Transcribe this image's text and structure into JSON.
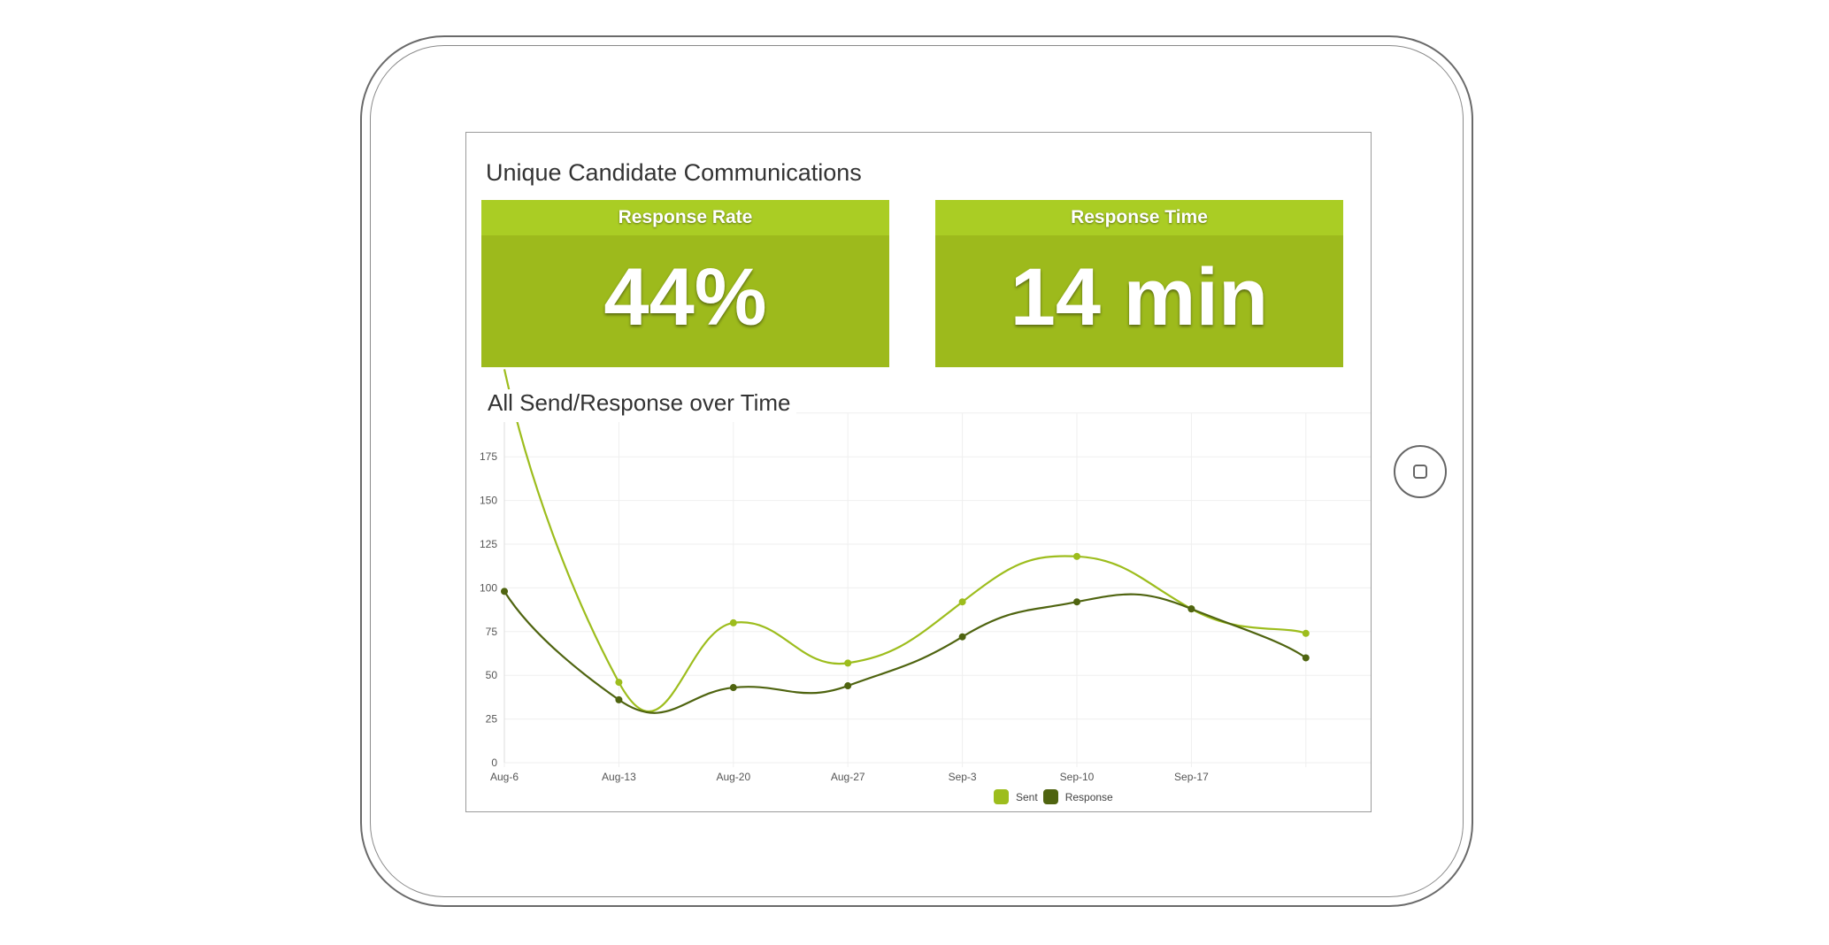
{
  "page_title": "Unique Candidate Communications",
  "cards": [
    {
      "label": "Response Rate",
      "value": "44%"
    },
    {
      "label": "Response Time",
      "value": "14 min"
    }
  ],
  "colors": {
    "card_header": "#aacd24",
    "card_body": "#9dba1c",
    "sent": "#9dbd1d",
    "response": "#4f6410"
  },
  "chart_data": {
    "type": "line",
    "title": "All Send/Response over Time",
    "categories": [
      "Aug-6",
      "Aug-13",
      "Aug-20",
      "Aug-27",
      "Sep-3",
      "Sep-10",
      "Sep-17",
      ""
    ],
    "series": [
      {
        "name": "Sent",
        "values": [
          225,
          46,
          80,
          57,
          92,
          118,
          88,
          74
        ]
      },
      {
        "name": "Response",
        "values": [
          98,
          36,
          43,
          44,
          72,
          92,
          88,
          60
        ]
      }
    ],
    "yticks": [
      0,
      25,
      50,
      75,
      100,
      125,
      150,
      175
    ],
    "ylim": [
      0,
      200
    ],
    "xlabel": "",
    "ylabel": "",
    "grid": true,
    "legend": "bottom-center"
  }
}
